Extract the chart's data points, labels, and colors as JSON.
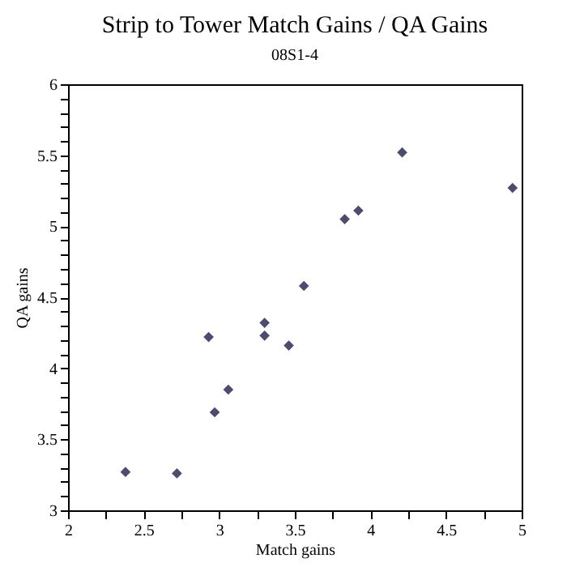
{
  "chart_data": {
    "type": "scatter",
    "title": "Strip to Tower Match Gains / QA Gains",
    "subtitle": "08S1-4",
    "xlabel": "Match gains",
    "ylabel": "QA gains",
    "x": [
      2.38,
      2.72,
      2.97,
      2.93,
      3.06,
      3.3,
      3.3,
      3.46,
      3.56,
      3.83,
      3.92,
      4.21,
      4.94
    ],
    "series": [
      {
        "color": "#000033",
        "values": [
          3.27,
          3.26,
          3.69,
          4.22,
          3.85,
          4.32,
          4.23,
          4.16,
          4.58,
          5.05,
          5.11,
          5.52,
          5.27
        ]
      }
    ],
    "marker": "diamond",
    "xlim": [
      2,
      5
    ],
    "ylim": [
      3,
      6
    ],
    "xticks": [
      2,
      {
        "value": 2.25,
        "label": null
      },
      2.5,
      {
        "value": 2.75,
        "label": null
      },
      3,
      {
        "value": 3.25,
        "label": null
      },
      3.5,
      {
        "value": 3.75,
        "label": null
      },
      4,
      {
        "value": 4.25,
        "label": null
      },
      4.5,
      {
        "value": 4.75,
        "label": null
      },
      5
    ],
    "yticks": [
      3,
      {
        "value": 3.1,
        "label": null
      },
      {
        "value": 3.2,
        "label": null
      },
      {
        "value": 3.3,
        "label": null
      },
      {
        "value": 3.4,
        "label": null
      },
      3.5,
      {
        "value": 3.6,
        "label": null
      },
      {
        "value": 3.7,
        "label": null
      },
      {
        "value": 3.8,
        "label": null
      },
      {
        "value": 3.9,
        "label": null
      },
      4,
      {
        "value": 4.1,
        "label": null
      },
      {
        "value": 4.2,
        "label": null
      },
      {
        "value": 4.3,
        "label": null
      },
      {
        "value": 4.4,
        "label": null
      },
      4.5,
      {
        "value": 4.6,
        "label": null
      },
      {
        "value": 4.7,
        "label": null
      },
      {
        "value": 4.8,
        "label": null
      },
      {
        "value": 4.9,
        "label": null
      },
      5,
      {
        "value": 5.1,
        "label": null
      },
      {
        "value": 5.2,
        "label": null
      },
      {
        "value": 5.3,
        "label": null
      },
      {
        "value": 5.4,
        "label": null
      },
      5.5,
      {
        "value": 5.6,
        "label": null
      },
      {
        "value": 5.7,
        "label": null
      },
      {
        "value": 5.8,
        "label": null
      },
      {
        "value": 5.9,
        "label": null
      },
      6
    ],
    "grid": false
  }
}
